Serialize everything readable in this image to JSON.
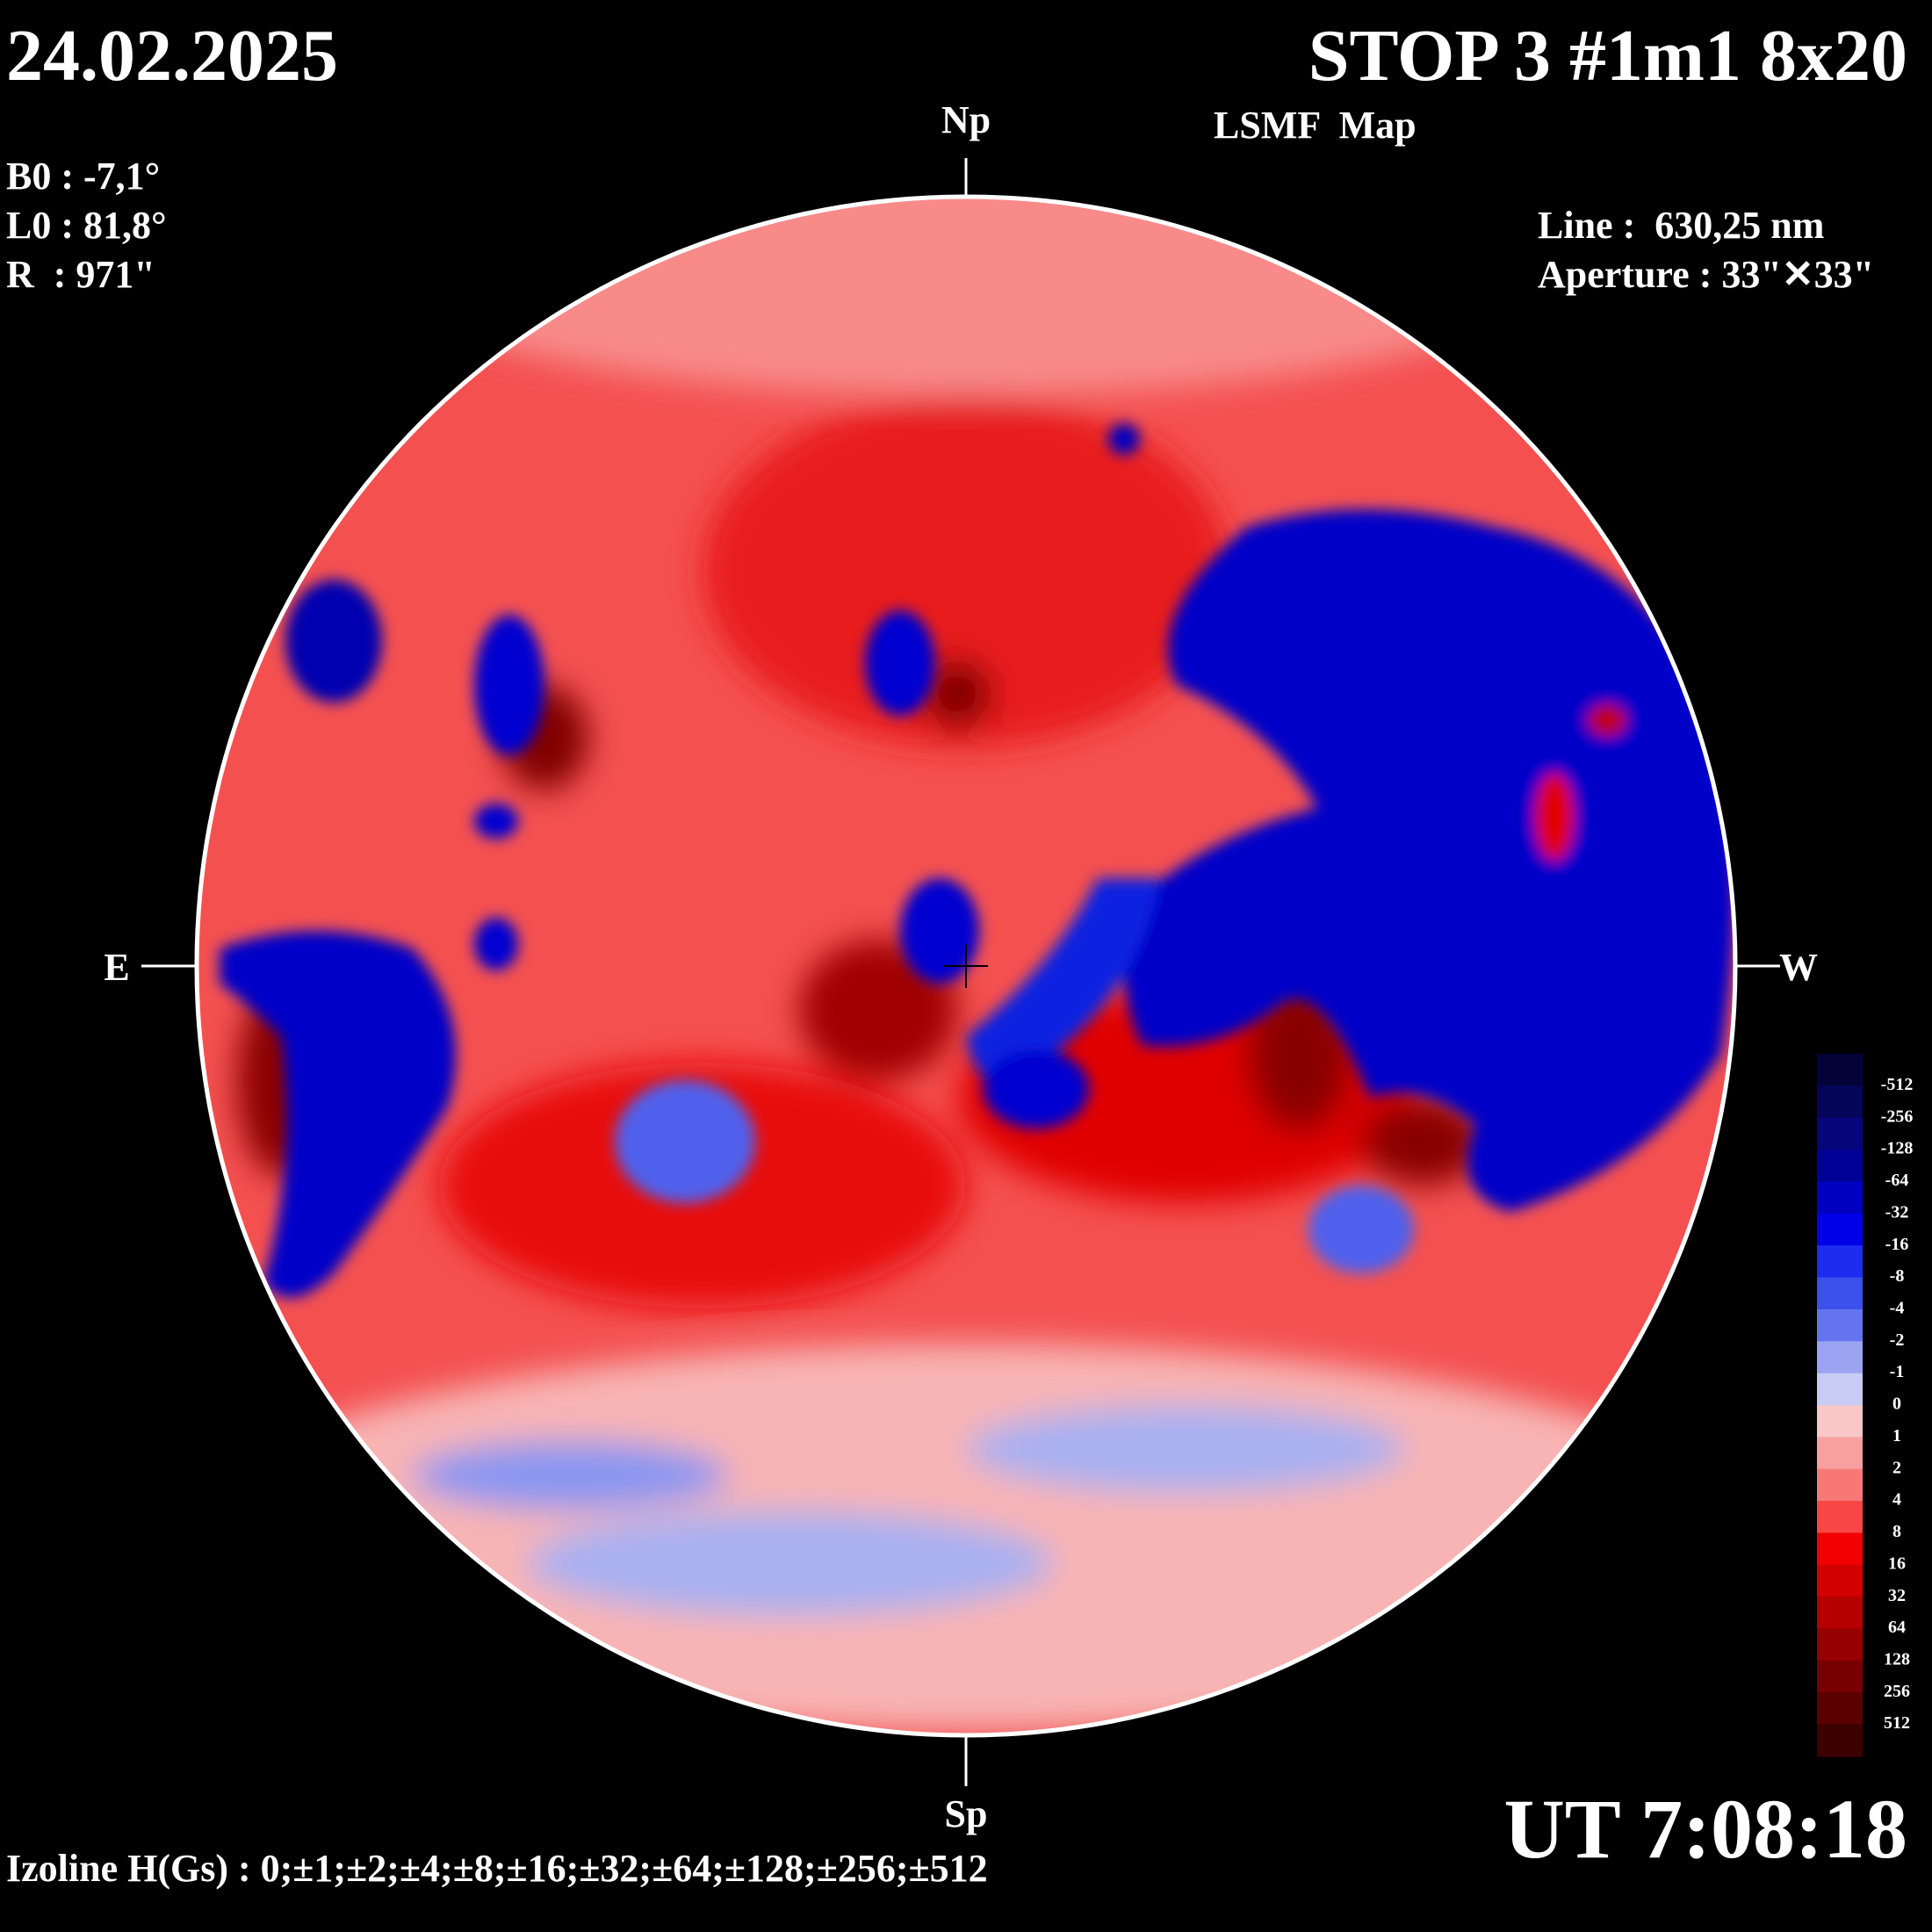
{
  "header": {
    "date": "24.02.2025",
    "title": "STOP 3 #1m1 8x20",
    "subtitle": "LSMF  Map"
  },
  "params": {
    "b0": "B0 : -7,1°",
    "l0": "L0 : 81,8°",
    "r": "R  : 971\"",
    "line": "Line :  630,25 nm",
    "aperture": "Aperture : 33\"✕33\""
  },
  "directions": {
    "north": "Np",
    "south": "Sp",
    "east": "E",
    "west": "W"
  },
  "time": "UT 7:08:18",
  "izoline": "Izoline H(Gs) : 0;±1;±2;±4;±8;±16;±32;±64;±128;±256;±512",
  "colorbar": {
    "labels": [
      "-512",
      "-256",
      "-128",
      "-64",
      "-32",
      "-16",
      "-8",
      "-4",
      "-2",
      "-1",
      "0",
      "1",
      "2",
      "4",
      "8",
      "16",
      "32",
      "64",
      "128",
      "256",
      "512"
    ],
    "colors": [
      "#03033a",
      "#05055a",
      "#06067a",
      "#000096",
      "#0000c0",
      "#0000e6",
      "#1e2cf0",
      "#3c50ec",
      "#6474ee",
      "#9aa4f2",
      "#c8ccf4",
      "#f8c8c8",
      "#f8a0a0",
      "#f87878",
      "#f84646",
      "#f00000",
      "#d20000",
      "#b40000",
      "#960000",
      "#780000",
      "#5a0000",
      "#3c0000"
    ]
  }
}
